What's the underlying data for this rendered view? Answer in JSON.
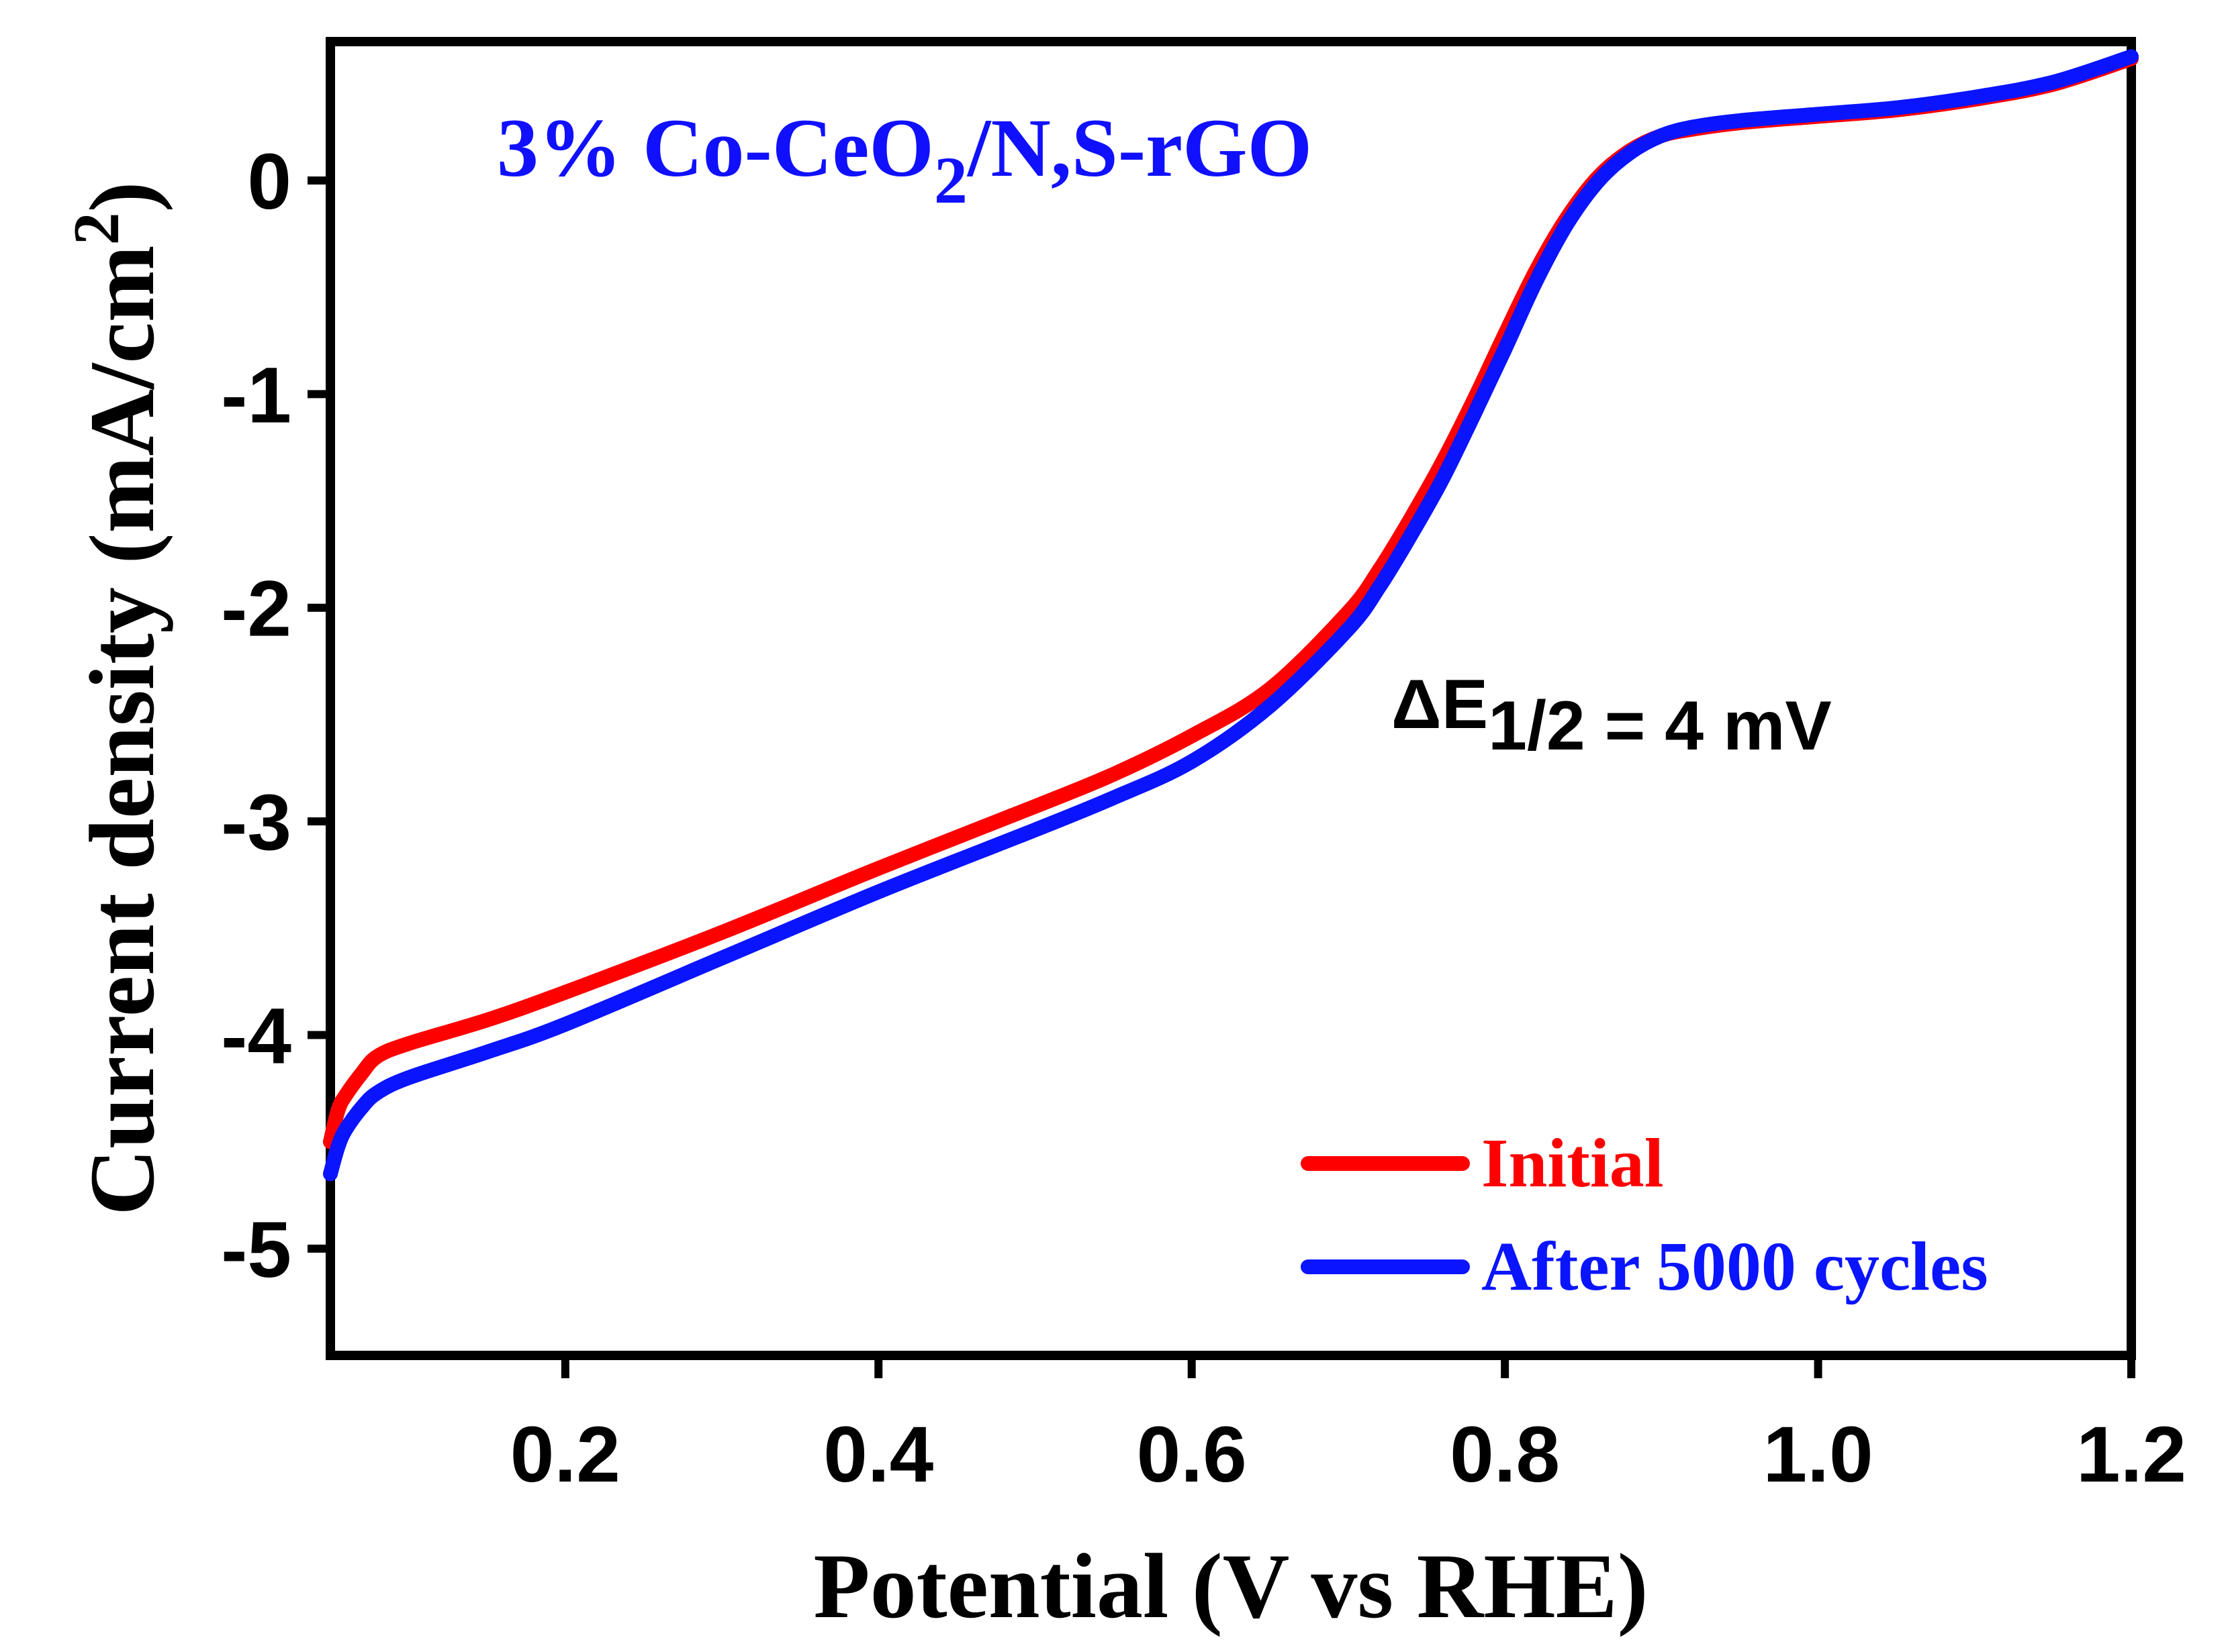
{
  "chart_data": {
    "type": "line",
    "title": {
      "prefix": "3% Co-CeO",
      "subscript": "2",
      "suffix": "/N,S-rGO",
      "color": "#1010ff"
    },
    "xlabel": "Potential (V vs RHE)",
    "ylabel": {
      "text": "Current density (mA/cm",
      "superscript": "2",
      "suffix": ")"
    },
    "xlim": [
      0.05,
      1.2
    ],
    "ylim": [
      -5.5,
      0.65
    ],
    "xticks": [
      0.2,
      0.4,
      0.6,
      0.8,
      1.0,
      1.2
    ],
    "xtick_labels": [
      "0.2",
      "0.4",
      "0.6",
      "0.8",
      "1.0",
      "1.2"
    ],
    "yticks": [
      0,
      -1,
      -2,
      -3,
      -4,
      -5
    ],
    "ytick_labels": [
      "0",
      "-1",
      "-2",
      "-3",
      "-4",
      "-5"
    ],
    "grid": false,
    "legend_position": "bottom-right",
    "annotation": {
      "delta": "ΔE",
      "subscript": "1/2",
      "text": " = 4 mV"
    },
    "series": [
      {
        "name": "Initial",
        "color": "#ff0000",
        "x": [
          0.05,
          0.055,
          0.06,
          0.07,
          0.08,
          0.1,
          0.15,
          0.2,
          0.3,
          0.4,
          0.5,
          0.55,
          0.6,
          0.65,
          0.7,
          0.72,
          0.74,
          0.76,
          0.78,
          0.8,
          0.82,
          0.84,
          0.86,
          0.88,
          0.9,
          0.92,
          0.95,
          1.0,
          1.05,
          1.1,
          1.15,
          1.2
        ],
        "values": [
          -4.5,
          -4.35,
          -4.28,
          -4.18,
          -4.1,
          -4.04,
          -3.93,
          -3.8,
          -3.52,
          -3.22,
          -2.93,
          -2.78,
          -2.6,
          -2.38,
          -2.02,
          -1.82,
          -1.58,
          -1.32,
          -1.03,
          -0.72,
          -0.42,
          -0.17,
          0.02,
          0.14,
          0.21,
          0.24,
          0.27,
          0.3,
          0.33,
          0.38,
          0.45,
          0.57
        ]
      },
      {
        "name": "After 5000 cycles",
        "color": "#0a14ff",
        "x": [
          0.05,
          0.055,
          0.06,
          0.07,
          0.08,
          0.1,
          0.15,
          0.2,
          0.3,
          0.4,
          0.5,
          0.55,
          0.6,
          0.65,
          0.7,
          0.72,
          0.74,
          0.76,
          0.78,
          0.8,
          0.82,
          0.84,
          0.86,
          0.88,
          0.9,
          0.92,
          0.95,
          1.0,
          1.05,
          1.1,
          1.15,
          1.2
        ],
        "values": [
          -4.65,
          -4.52,
          -4.44,
          -4.34,
          -4.27,
          -4.2,
          -4.08,
          -3.95,
          -3.64,
          -3.33,
          -3.04,
          -2.89,
          -2.72,
          -2.46,
          -2.1,
          -1.9,
          -1.66,
          -1.4,
          -1.1,
          -0.79,
          -0.47,
          -0.2,
          0.0,
          0.13,
          0.21,
          0.25,
          0.28,
          0.31,
          0.34,
          0.39,
          0.46,
          0.58
        ]
      }
    ]
  }
}
